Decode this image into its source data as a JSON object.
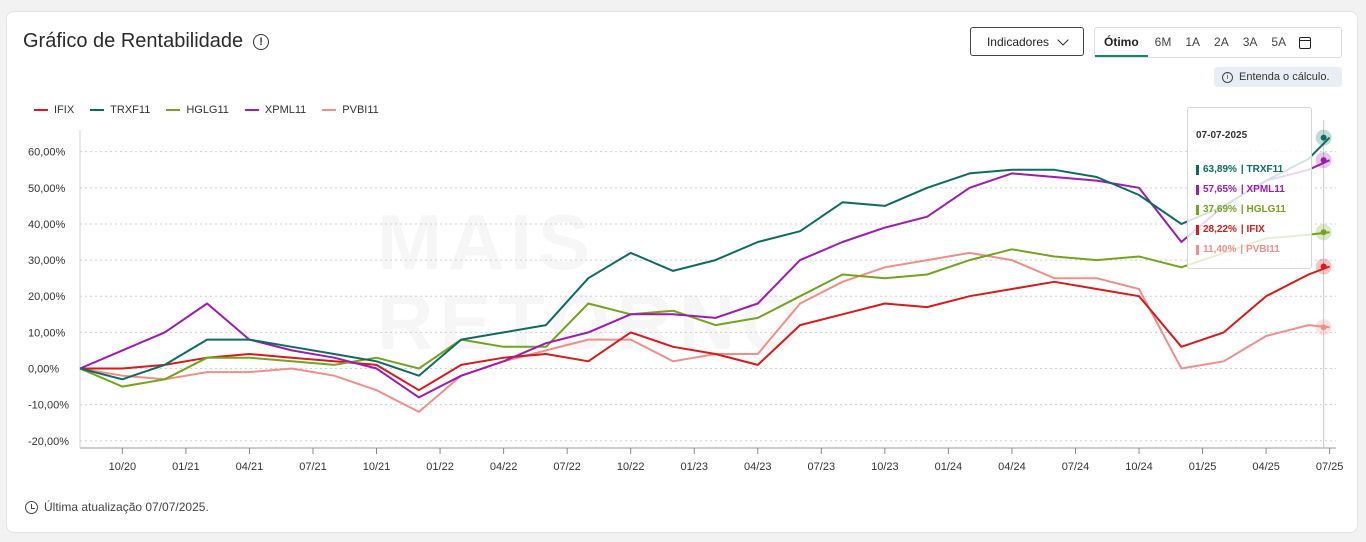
{
  "header": {
    "title": "Gráfico de Rentabilidade",
    "indicadores_label": "Indicadores",
    "periods": [
      "Ótimo",
      "6M",
      "1A",
      "2A",
      "3A",
      "5A"
    ],
    "active_period": "Ótimo",
    "calc_link": "Entenda o cálculo."
  },
  "footer": {
    "updated": "Última atualização 07/07/2025."
  },
  "watermark": {
    "line1": "MAIS",
    "line2": "RETORNO"
  },
  "tooltip": {
    "date": "07-07-2025",
    "rows": [
      {
        "value": "63,89%",
        "name": "| TRXF11",
        "color": "#0e6b63"
      },
      {
        "value": "57,65%",
        "name": "| XPML11",
        "color": "#9c1bb0"
      },
      {
        "value": "37,69%",
        "name": "| HGLG11",
        "color": "#74a31f"
      },
      {
        "value": "28,22%",
        "name": "| IFIX",
        "color": "#d71a1a"
      },
      {
        "value": "11,40%",
        "name": "| PVBI11",
        "color": "#ef8f8a"
      }
    ]
  },
  "chart_data": {
    "type": "line",
    "title": "Gráfico de Rentabilidade",
    "xlabel": "",
    "ylabel": "",
    "ylim": [
      -22,
      66
    ],
    "y_ticks": [
      "60,00%",
      "50,00%",
      "40,00%",
      "30,00%",
      "20,00%",
      "10,00%",
      "0,00%",
      "-10,00%",
      "-20,00%"
    ],
    "y_tick_values": [
      60,
      50,
      40,
      30,
      20,
      10,
      0,
      -10,
      -20
    ],
    "x_ticks": [
      "10/20",
      "01/21",
      "04/21",
      "07/21",
      "10/21",
      "01/22",
      "04/22",
      "07/22",
      "10/22",
      "01/23",
      "04/23",
      "07/23",
      "10/23",
      "01/24",
      "04/24",
      "07/24",
      "10/24",
      "01/25",
      "04/25",
      "07/25"
    ],
    "x_tick_values": [
      "2020-10",
      "2021-01",
      "2021-04",
      "2021-07",
      "2021-10",
      "2022-01",
      "2022-04",
      "2022-07",
      "2022-10",
      "2023-01",
      "2023-04",
      "2023-07",
      "2023-10",
      "2024-01",
      "2024-04",
      "2024-07",
      "2024-10",
      "2025-01",
      "2025-04",
      "2025-07"
    ],
    "x_start": "2020-08",
    "x_end": "2025-07",
    "grid": true,
    "legend_position": "top-left",
    "x": [
      "2020-08",
      "2020-10",
      "2020-12",
      "2021-02",
      "2021-04",
      "2021-06",
      "2021-08",
      "2021-10",
      "2021-12",
      "2022-02",
      "2022-04",
      "2022-06",
      "2022-08",
      "2022-10",
      "2022-12",
      "2023-02",
      "2023-04",
      "2023-06",
      "2023-08",
      "2023-10",
      "2023-12",
      "2024-02",
      "2024-04",
      "2024-06",
      "2024-08",
      "2024-10",
      "2024-12",
      "2025-02",
      "2025-04",
      "2025-06",
      "2025-07"
    ],
    "series": [
      {
        "name": "IFIX",
        "color": "#d71a1a",
        "values": [
          0,
          0,
          1,
          3,
          4,
          3,
          2,
          1,
          -6,
          1,
          3,
          4,
          2,
          10,
          6,
          4,
          1,
          12,
          15,
          18,
          17,
          20,
          22,
          24,
          22,
          20,
          6,
          10,
          20,
          26,
          28.22
        ]
      },
      {
        "name": "TRXF11",
        "color": "#0e6b63",
        "values": [
          0,
          -3,
          1,
          8,
          8,
          6,
          4,
          2,
          -2,
          8,
          10,
          12,
          25,
          32,
          27,
          30,
          35,
          38,
          46,
          45,
          50,
          54,
          55,
          55,
          53,
          48,
          40,
          45,
          52,
          58,
          63.89
        ]
      },
      {
        "name": "HGLG11",
        "color": "#74a31f",
        "values": [
          0,
          -5,
          -3,
          3,
          3,
          2,
          1,
          3,
          0,
          8,
          6,
          6,
          18,
          15,
          16,
          12,
          14,
          20,
          26,
          25,
          26,
          30,
          33,
          31,
          30,
          31,
          28,
          32,
          36,
          37,
          37.69
        ]
      },
      {
        "name": "XPML11",
        "color": "#9c1bb0",
        "values": [
          0,
          5,
          10,
          18,
          8,
          5,
          3,
          0,
          -8,
          -2,
          2,
          7,
          10,
          15,
          15,
          14,
          18,
          30,
          35,
          39,
          42,
          50,
          54,
          53,
          52,
          50,
          35,
          45,
          52,
          55,
          57.65
        ]
      },
      {
        "name": "PVBI11",
        "color": "#ef8f8a",
        "values": [
          0,
          -2,
          -3,
          -1,
          -1,
          0,
          -2,
          -6,
          -12,
          -2,
          2,
          5,
          8,
          8,
          2,
          4,
          4,
          18,
          24,
          28,
          30,
          32,
          30,
          25,
          25,
          22,
          0,
          2,
          9,
          12,
          11.4
        ]
      }
    ]
  }
}
